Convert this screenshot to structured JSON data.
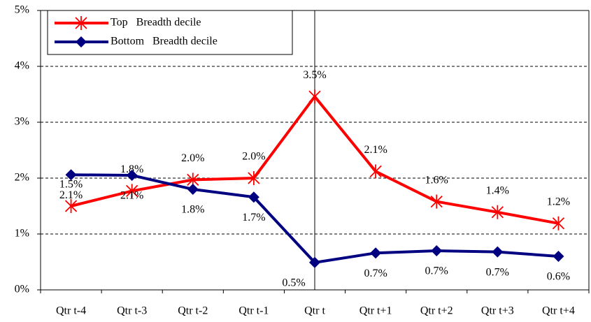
{
  "chart_data": {
    "type": "line",
    "categories": [
      "Qtr t-4",
      "Qtr t-3",
      "Qtr t-2",
      "Qtr t-1",
      "Qtr t",
      "Qtr t+1",
      "Qtr t+2",
      "Qtr t+3",
      "Qtr t+4"
    ],
    "series": [
      {
        "name": "Top   Breadth decile",
        "color": "#ff0000",
        "marker": "star",
        "values": [
          1.5,
          1.77,
          1.97,
          2.0,
          3.46,
          2.12,
          1.58,
          1.39,
          1.19
        ],
        "value_labels": [
          "1.5%",
          "1.8%",
          "2.0%",
          "2.0%",
          "3.5%",
          "2.1%",
          "1.6%",
          "1.4%",
          "1.2%"
        ]
      },
      {
        "name": "Bottom   Breadth decile",
        "color": "#000080",
        "marker": "diamond",
        "values": [
          2.06,
          2.05,
          1.8,
          1.66,
          0.49,
          0.66,
          0.7,
          0.68,
          0.6
        ],
        "value_labels": [
          "2.1%",
          "2.1%",
          "1.8%",
          "1.7%",
          "0.5%",
          "0.7%",
          "0.7%",
          "0.7%",
          "0.6%"
        ]
      }
    ],
    "ylim": [
      0,
      5
    ],
    "yticks": [
      {
        "value": 0,
        "label": "0%"
      },
      {
        "value": 1,
        "label": "1%"
      },
      {
        "value": 2,
        "label": "2%"
      },
      {
        "value": 3,
        "label": "3%"
      },
      {
        "value": 4,
        "label": "4%"
      },
      {
        "value": 5,
        "label": "5%"
      }
    ],
    "grid": true
  }
}
